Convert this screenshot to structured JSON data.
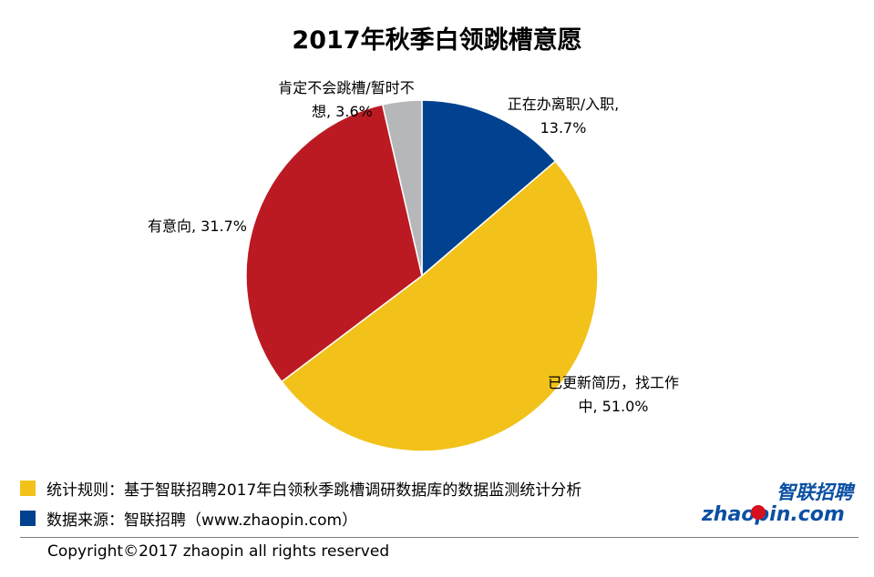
{
  "chart_data": {
    "type": "pie",
    "title": "2017年秋季白领跳槽意愿",
    "slices": [
      {
        "label_lines": [
          "正在办离职/入职,",
          "13.7%"
        ],
        "value": 13.7,
        "color": "#00428f"
      },
      {
        "label_lines": [
          "已更新简历，找工作",
          "中, 51.0%"
        ],
        "value": 51.0,
        "color": "#f2c21b"
      },
      {
        "label_lines": [
          "有意向, 31.7%"
        ],
        "value": 31.7,
        "color": "#bb1a22"
      },
      {
        "label_lines": [
          "肯定不会跳槽/暂时不",
          "想, 3.6%"
        ],
        "value": 3.6,
        "color": "#b6b7b9"
      }
    ]
  },
  "legend": [
    {
      "text": "统计规则：基于智联招聘2017年白领秋季跳槽调研数据库的数据监测统计分析",
      "color": "#f2c21b"
    },
    {
      "text": "数据来源：智联招聘（www.zhaopin.com）",
      "color": "#00428f"
    }
  ],
  "logo": {
    "cn": "智联招聘",
    "en": "zhaopin.com"
  },
  "footer": {
    "copyright": "Copyright©2017 zhaopin all rights reserved"
  }
}
